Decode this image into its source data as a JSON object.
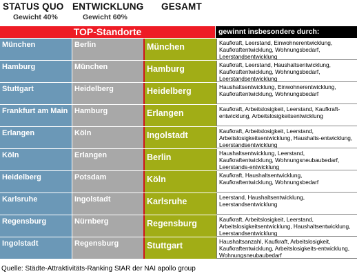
{
  "header": {
    "col1_title": "STATUS QUO",
    "col1_weight": "Gewicht 40%",
    "col2_title": "ENTWICKLUNG",
    "col2_weight": "Gewicht 60%",
    "col3_title": "GESAMT"
  },
  "banner": "TOP-Standorte",
  "reason_header": "gewinnt insbesondere durch:",
  "rows": [
    {
      "status": "München",
      "entwicklung": "Berlin",
      "gesamt": "München",
      "reason": "Kaufkraft, Leerstand, Einwohnerentwicklung, Kaufkraftentwicklung, Wohnungsbedarf, Leerstandsentwicklung"
    },
    {
      "status": "Hamburg",
      "entwicklung": "München",
      "gesamt": "Hamburg",
      "reason": "Kaufkraft, Leerstand, Haushaltsentwicklung, Kaufkraftentwicklung, Wohnungsbedarf, Leerstandsentwicklung"
    },
    {
      "status": "Stuttgart",
      "entwicklung": "Heidelberg",
      "gesamt": "Heidelberg",
      "reason": "Haushaltsentwicklung, Einwohnerentwicklung, Kaufkraftentwicklung, Wohnungsbedarf"
    },
    {
      "status": "Frankfurt am Main",
      "entwicklung": "Hamburg",
      "gesamt": "Erlangen",
      "reason": "Kaufkraft, Arbeitslosigkeit, Leerstand, Kaufkraft-entwicklung, Arbeitslosigkeitsentwicklung"
    },
    {
      "status": "Erlangen",
      "entwicklung": "Köln",
      "gesamt": "Ingolstadt",
      "reason": "Kaufkraft, Arbeitslosigkeit, Leerstand, Arbeitslosigkeitsentwicklung, Haushalts-entwicklung, Leerstandsentwicklung"
    },
    {
      "status": "Köln",
      "entwicklung": "Erlangen",
      "gesamt": "Berlin",
      "reason": "Haushaltsentwicklung, Leerstand, Kaufkraftentwicklung, Wohnungsneubaubedarf, Leerstands-entwicklung"
    },
    {
      "status": "Heidelberg",
      "entwicklung": "Potsdam",
      "gesamt": "Köln",
      "reason": "Kaufkraft, Haushaltsentwicklung, Kaufkraftentwicklung, Wohnungsbedarf"
    },
    {
      "status": "Karlsruhe",
      "entwicklung": "Ingolstadt",
      "gesamt": "Karlsruhe",
      "reason": "Leerstand, Haushaltsentwicklung, Leerstandsentwicklung"
    },
    {
      "status": "Regensburg",
      "entwicklung": "Nürnberg",
      "gesamt": "Regensburg",
      "reason": "Kaufkraft, Arbeitslosigkeit, Leerstand, Arbeitslosigkeitsentwicklung, Haushaltsentwicklung, Leerstandsentwicklung"
    },
    {
      "status": "Ingolstadt",
      "entwicklung": "Regensburg",
      "gesamt": "Stuttgart",
      "reason": "Haushaltsanzahl, Kaufkraft, Arbeitslosigkeit, Kaufkraftentwicklung, Arbeitslosigkeits-entwicklung, Wohnungsneubaubedarf"
    }
  ],
  "footer": "Quelle: Städte-Attraktivitäts-Ranking StAR der NAI apollo group",
  "colors": {
    "status_column": "#6b98b7",
    "entwicklung_column": "#a8a8a8",
    "gesamt_column": "#a1ad16",
    "banner": "#ee1c25",
    "reason_header": "#000000"
  }
}
